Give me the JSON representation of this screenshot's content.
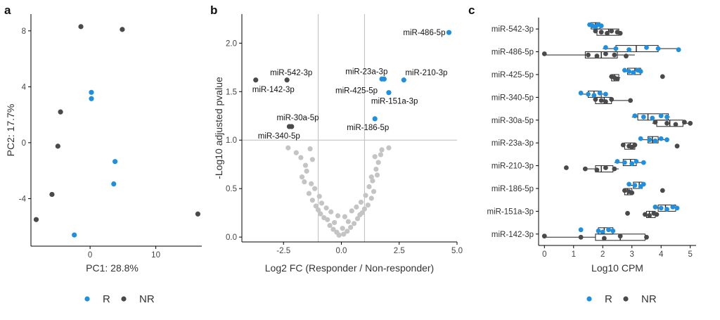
{
  "colors": {
    "R": "#1f8fe0",
    "NR": "#4a4a4a",
    "nonsig": "#c4c4c4",
    "axis": "#000000",
    "refline": "#bdbdbd"
  },
  "legend": {
    "items": [
      {
        "key": "R",
        "label": "R"
      },
      {
        "key": "NR",
        "label": "NR"
      }
    ]
  },
  "chart_data": [
    {
      "panel": "a",
      "type": "scatter",
      "xlabel": "PC1: 28.8%",
      "ylabel": "PC2: 17.7%",
      "xlim": [
        -9,
        17
      ],
      "ylim": [
        -7.4,
        9.2
      ],
      "xticks": [
        0,
        10
      ],
      "yticks": [
        -4,
        0,
        4,
        8
      ],
      "series": [
        {
          "name": "R",
          "points": [
            [
              0.2,
              3.6
            ],
            [
              0.2,
              3.15
            ],
            [
              3.8,
              -1.35
            ],
            [
              3.6,
              -2.95
            ],
            [
              -2.4,
              -6.6
            ]
          ]
        },
        {
          "name": "NR",
          "points": [
            [
              -1.4,
              8.3
            ],
            [
              4.9,
              8.1
            ],
            [
              -4.5,
              2.2
            ],
            [
              -4.9,
              -0.25
            ],
            [
              -5.8,
              -3.7
            ],
            [
              -8.2,
              -5.5
            ],
            [
              16.4,
              -5.1
            ]
          ]
        }
      ]
    },
    {
      "panel": "b",
      "type": "scatter",
      "xlabel": "Log2 FC (Responder / Non-responder)",
      "ylabel": "-Log10 adjusted pvalue",
      "xlim": [
        -4.3,
        5.0
      ],
      "ylim": [
        -0.05,
        2.3
      ],
      "xticks": [
        -2.5,
        0.0,
        2.5,
        5.0
      ],
      "xtick_labels": [
        "-2.5",
        "0.0",
        "2.5",
        "5.0"
      ],
      "yticks": [
        0.0,
        0.5,
        1.0,
        1.5,
        2.0
      ],
      "ytick_labels": [
        "0.0",
        "0.5",
        "1.0",
        "1.5",
        "2.0"
      ],
      "vlines": [
        -1,
        1
      ],
      "hline": 1.0,
      "labeled_points": [
        {
          "label": "miR-486-5p",
          "x": 4.65,
          "y": 2.11,
          "group": "R"
        },
        {
          "label": "miR-542-3p",
          "x": -2.35,
          "y": 1.62,
          "group": "NR"
        },
        {
          "label": "miR-142-3p",
          "x": -3.7,
          "y": 1.62,
          "group": "NR"
        },
        {
          "label": "miR-23a-3p",
          "x": 1.85,
          "y": 1.63,
          "group": "R"
        },
        {
          "label": "miR-210-3p",
          "x": 2.7,
          "y": 1.62,
          "group": "R"
        },
        {
          "label": "miR-425-5p",
          "x": 1.75,
          "y": 1.63,
          "group": "R"
        },
        {
          "label": "miR-151a-3p",
          "x": 2.05,
          "y": 1.49,
          "group": "R"
        },
        {
          "label": "miR-30a-5p",
          "x": -2.25,
          "y": 1.14,
          "group": "NR"
        },
        {
          "label": "miR-340-5p",
          "x": -2.15,
          "y": 1.14,
          "group": "NR"
        },
        {
          "label": "miR-186-5p",
          "x": 1.45,
          "y": 1.22,
          "group": "R"
        }
      ],
      "nonsignificant_points": [
        [
          -0.1,
          0.02
        ],
        [
          0.1,
          0.03
        ],
        [
          -0.2,
          0.05
        ],
        [
          0.25,
          0.06
        ],
        [
          -0.35,
          0.08
        ],
        [
          0.4,
          0.1
        ],
        [
          0.05,
          0.09
        ],
        [
          -0.5,
          0.12
        ],
        [
          0.55,
          0.14
        ],
        [
          -0.3,
          0.15
        ],
        [
          0.3,
          0.16
        ],
        [
          -0.6,
          0.18
        ],
        [
          0.7,
          0.19
        ],
        [
          -0.75,
          0.2
        ],
        [
          0.15,
          0.21
        ],
        [
          -0.15,
          0.22
        ],
        [
          0.8,
          0.23
        ],
        [
          -0.9,
          0.24
        ],
        [
          0.9,
          0.25
        ],
        [
          -0.45,
          0.26
        ],
        [
          0.45,
          0.27
        ],
        [
          -1.0,
          0.28
        ],
        [
          1.0,
          0.29
        ],
        [
          -0.65,
          0.3
        ],
        [
          0.65,
          0.31
        ],
        [
          -1.1,
          0.32
        ],
        [
          1.15,
          0.33
        ],
        [
          -0.85,
          0.35
        ],
        [
          0.85,
          0.36
        ],
        [
          -1.25,
          0.38
        ],
        [
          1.3,
          0.4
        ],
        [
          -0.95,
          0.42
        ],
        [
          1.05,
          0.43
        ],
        [
          -1.4,
          0.45
        ],
        [
          1.4,
          0.47
        ],
        [
          -1.15,
          0.5
        ],
        [
          1.2,
          0.52
        ],
        [
          -1.3,
          0.55
        ],
        [
          1.35,
          0.58
        ],
        [
          -1.7,
          0.62
        ],
        [
          1.55,
          0.64
        ],
        [
          -1.5,
          0.68
        ],
        [
          1.5,
          0.7
        ],
        [
          -1.55,
          0.74
        ],
        [
          1.6,
          0.77
        ],
        [
          -1.25,
          0.8
        ],
        [
          1.45,
          0.83
        ],
        [
          -1.95,
          0.87
        ],
        [
          1.75,
          0.9
        ],
        [
          -2.3,
          0.92
        ],
        [
          -1.35,
          0.91
        ],
        [
          2.05,
          0.92
        ],
        [
          1.7,
          0.85
        ],
        [
          -1.75,
          0.82
        ],
        [
          1.3,
          0.62
        ],
        [
          -1.6,
          0.57
        ]
      ]
    },
    {
      "panel": "c",
      "type": "box",
      "xlabel": "Log10 CPM",
      "xlim": [
        -0.2,
        5.2
      ],
      "xticks": [
        0,
        1,
        2,
        3,
        4,
        5
      ],
      "categories": [
        "miR-542-3p",
        "miR-486-5p",
        "miR-425-5p",
        "miR-340-5p",
        "miR-30a-5p",
        "miR-23a-3p",
        "miR-210-3p",
        "miR-186-5p",
        "miR-151a-3p",
        "miR-142-3p"
      ],
      "groups": [
        {
          "category": "miR-542-3p",
          "R": {
            "box": [
              1.6,
              1.75,
              1.9
            ],
            "whisker": [
              1.5,
              2.0
            ],
            "points": [
              1.55,
              1.65,
              1.75,
              1.85,
              1.95
            ]
          },
          "NR": {
            "box": [
              1.8,
              2.2,
              2.55
            ],
            "whisker": [
              1.7,
              2.65
            ],
            "points": [
              1.75,
              1.95,
              2.15,
              2.3,
              2.5,
              2.6
            ]
          }
        },
        {
          "category": "miR-486-5p",
          "R": {
            "box": [
              2.45,
              3.15,
              3.9
            ],
            "whisker": [
              2.0,
              4.55
            ],
            "points": [
              2.1,
              2.45,
              2.9,
              3.5,
              3.9,
              4.6
            ]
          },
          "NR": {
            "box": [
              1.4,
              1.95,
              2.5
            ],
            "whisker": [
              0.05,
              3.1
            ],
            "points": [
              0.0,
              1.5,
              1.8,
              2.1,
              2.4,
              2.8
            ]
          }
        },
        {
          "category": "miR-425-5p",
          "R": {
            "box": [
              2.85,
              3.1,
              3.3
            ],
            "whisker": [
              2.7,
              3.35
            ],
            "points": [
              2.75,
              2.9,
              3.05,
              3.2,
              3.3
            ]
          },
          "NR": {
            "box": [
              2.3,
              2.4,
              2.55
            ],
            "whisker": [
              2.25,
              2.6
            ],
            "points": [
              2.3,
              2.4,
              2.5,
              4.05
            ]
          }
        },
        {
          "category": "miR-340-5p",
          "R": {
            "box": [
              1.5,
              1.7,
              1.95
            ],
            "whisker": [
              1.2,
              2.15
            ],
            "points": [
              1.25,
              1.5,
              1.7,
              1.9,
              2.1
            ]
          },
          "NR": {
            "box": [
              1.75,
              2.05,
              2.3
            ],
            "whisker": [
              1.7,
              2.95
            ],
            "points": [
              1.75,
              1.95,
              2.1,
              2.3,
              2.95
            ]
          }
        },
        {
          "category": "miR-30a-5p",
          "R": {
            "box": [
              3.2,
              3.55,
              4.25
            ],
            "whisker": [
              3.0,
              4.3
            ],
            "points": [
              3.1,
              3.4,
              3.7,
              4.0,
              4.2
            ]
          },
          "NR": {
            "box": [
              3.85,
              4.3,
              4.75
            ],
            "whisker": [
              3.7,
              5.0
            ],
            "points": [
              3.8,
              4.2,
              4.5,
              4.8,
              5.0
            ]
          }
        },
        {
          "category": "miR-23a-3p",
          "R": {
            "box": [
              3.55,
              3.7,
              3.9
            ],
            "whisker": [
              3.3,
              4.25
            ],
            "points": [
              3.3,
              3.6,
              3.8,
              4.0,
              4.2
            ]
          },
          "NR": {
            "box": [
              2.75,
              2.95,
              3.1
            ],
            "whisker": [
              2.65,
              3.15
            ],
            "points": [
              2.7,
              2.9,
              3.0,
              3.1,
              4.55
            ]
          }
        },
        {
          "category": "miR-210-3p",
          "R": {
            "box": [
              2.7,
              2.95,
              3.15
            ],
            "whisker": [
              2.4,
              3.4
            ],
            "points": [
              2.5,
              2.75,
              3.0,
              3.15,
              3.4
            ]
          },
          "NR": {
            "box": [
              1.75,
              1.95,
              2.35
            ],
            "whisker": [
              1.4,
              2.55
            ],
            "points": [
              0.75,
              1.4,
              1.8,
              2.1,
              2.4
            ]
          }
        },
        {
          "category": "miR-186-5p",
          "R": {
            "box": [
              3.05,
              3.25,
              3.35
            ],
            "whisker": [
              2.9,
              3.45
            ],
            "points": [
              2.9,
              3.1,
              3.3,
              3.4
            ]
          },
          "NR": {
            "box": [
              2.75,
              2.85,
              3.0
            ],
            "whisker": [
              2.7,
              3.05
            ],
            "points": [
              2.75,
              2.9,
              3.0,
              4.05
            ]
          }
        },
        {
          "category": "miR-151a-3p",
          "R": {
            "box": [
              3.9,
              4.15,
              4.5
            ],
            "whisker": [
              3.75,
              4.55
            ],
            "points": [
              3.8,
              4.0,
              4.2,
              4.4,
              4.55
            ]
          },
          "NR": {
            "box": [
              3.5,
              3.6,
              3.8
            ],
            "whisker": [
              3.4,
              3.85
            ],
            "points": [
              2.85,
              3.45,
              3.6,
              3.75,
              3.85
            ]
          }
        },
        {
          "category": "miR-142-3p",
          "R": {
            "box": [
              1.85,
              2.05,
              2.35
            ],
            "whisker": [
              1.8,
              2.4
            ],
            "points": [
              1.25,
              1.85,
              2.0,
              2.2,
              2.35
            ]
          },
          "NR": {
            "box": [
              1.75,
              2.6,
              3.45
            ],
            "whisker": [
              0.0,
              3.5
            ],
            "points": [
              0.0,
              1.25,
              2.05,
              2.6,
              3.5
            ]
          }
        }
      ]
    }
  ]
}
